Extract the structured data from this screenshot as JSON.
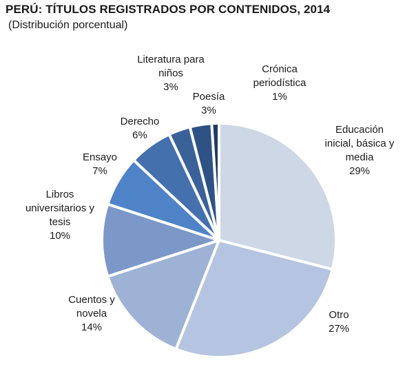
{
  "title": "PERÚ: TÍTULOS REGISTRADOS POR CONTENIDOS, 2014",
  "subtitle": "(Distribución porcentual)",
  "chart_data": {
    "type": "pie",
    "title": "PERÚ: TÍTULOS REGISTRADOS POR CONTENIDOS, 2014",
    "subtitle": "(Distribución porcentual)",
    "unit": "%",
    "start_angle_deg": 0,
    "direction": "clockwise",
    "slices": [
      {
        "label": "Educación inicial, básica y media",
        "label_lines": [
          "Educación",
          "inicial, básica y",
          "media"
        ],
        "value": 29,
        "display": "29%",
        "color": "#ced7e6"
      },
      {
        "label": "Otro",
        "label_lines": [
          "Otro"
        ],
        "value": 27,
        "display": "27%",
        "color": "#b5c4e0"
      },
      {
        "label": "Cuentos y novela",
        "label_lines": [
          "Cuentos y",
          "novela"
        ],
        "value": 14,
        "display": "14%",
        "color": "#9eb2d5"
      },
      {
        "label": "Libros universitarios y tesis",
        "label_lines": [
          "Libros",
          "universitarios y",
          "tesis"
        ],
        "value": 10,
        "display": "10%",
        "color": "#7c98c9"
      },
      {
        "label": "Ensayo",
        "label_lines": [
          "Ensayo"
        ],
        "value": 7,
        "display": "7%",
        "color": "#4f83c7"
      },
      {
        "label": "Derecho",
        "label_lines": [
          "Derecho"
        ],
        "value": 6,
        "display": "6%",
        "color": "#4470ae"
      },
      {
        "label": "Literatura para niños",
        "label_lines": [
          "Literatura para",
          "niños"
        ],
        "value": 3,
        "display": "3%",
        "color": "#3a6299"
      },
      {
        "label": "Poesía",
        "label_lines": [
          "Poesía"
        ],
        "value": 3,
        "display": "3%",
        "color": "#2e5284"
      },
      {
        "label": "Crónica periodística",
        "label_lines": [
          "Crónica",
          "periodística"
        ],
        "value": 1,
        "display": "1%",
        "color": "#1f3a62"
      }
    ]
  }
}
